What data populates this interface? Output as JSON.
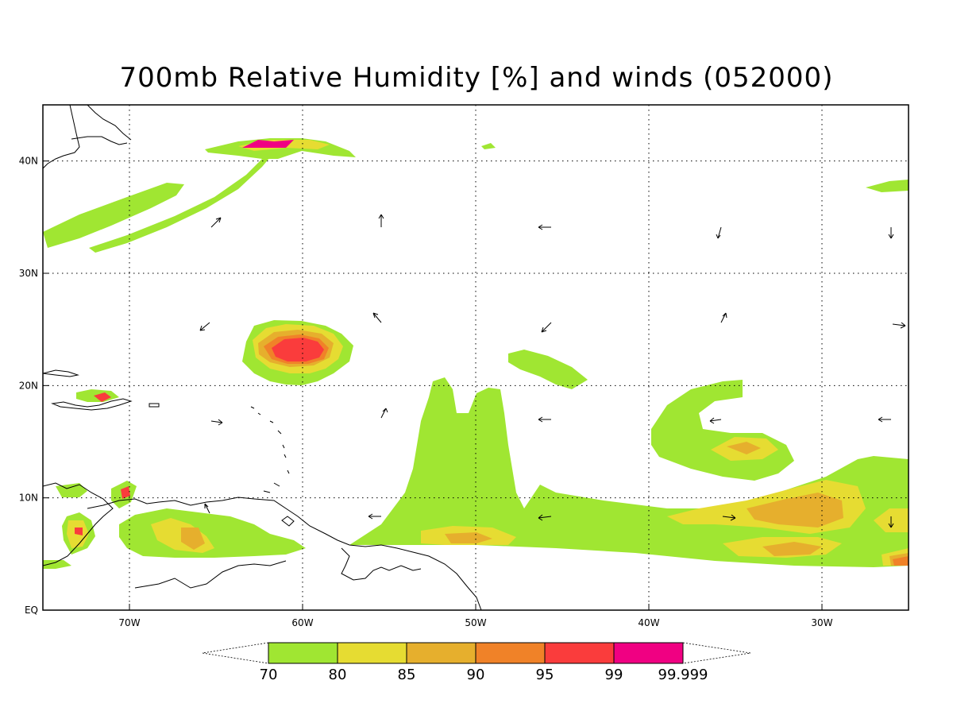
{
  "title": "700mb Relative Humidity [%] and winds (052000)",
  "map": {
    "lon_range": [
      -75,
      -25
    ],
    "lat_range": [
      0,
      45
    ],
    "lon_ticks": [
      {
        "v": -70,
        "label": "70W"
      },
      {
        "v": -60,
        "label": "60W"
      },
      {
        "v": -50,
        "label": "50W"
      },
      {
        "v": -40,
        "label": "40W"
      },
      {
        "v": -30,
        "label": "30W"
      }
    ],
    "lat_ticks": [
      {
        "v": 0,
        "label": "EQ"
      },
      {
        "v": 10,
        "label": "10N"
      },
      {
        "v": 20,
        "label": "20N"
      },
      {
        "v": 30,
        "label": "30N"
      },
      {
        "v": 40,
        "label": "40N"
      }
    ],
    "grid": "dotted"
  },
  "colorbar": {
    "levels": [
      "70",
      "80",
      "85",
      "90",
      "95",
      "99",
      "99.999"
    ],
    "colors": [
      "#a0e632",
      "#e6dc32",
      "#e6af2d",
      "#f08228",
      "#fa3c3c",
      "#f00082"
    ]
  }
}
